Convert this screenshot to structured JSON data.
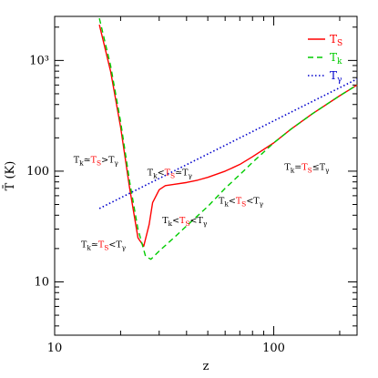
{
  "chart_data": {
    "type": "line",
    "xscale": "log",
    "yscale": "log",
    "xlim": [
      10,
      240
    ],
    "ylim": [
      3.3,
      2500
    ],
    "xlabel": "z",
    "ylabel": "T̄ (K)",
    "xticks": [
      {
        "value": 10,
        "label": "10"
      },
      {
        "value": 100,
        "label": "100"
      }
    ],
    "yticks": [
      {
        "value": 10,
        "label": "10"
      },
      {
        "value": 100,
        "label": "100"
      },
      {
        "value": 1000,
        "label": "10³"
      }
    ],
    "colors": {
      "T_S": "#ff0000",
      "T_k": "#00cc00",
      "T_gamma": "#0000cc"
    },
    "series": [
      {
        "name": "T_S",
        "legend_main": "T",
        "legend_sub": "S",
        "style": "solid",
        "x": [
          16,
          18,
          20,
          22,
          24,
          25.5,
          27,
          28,
          30,
          32,
          35,
          40,
          45,
          50,
          60,
          70,
          80,
          100,
          120,
          150,
          200,
          240
        ],
        "y": [
          2100,
          800,
          250,
          70,
          25,
          21,
          33,
          52,
          68,
          74,
          76,
          79,
          83,
          88,
          100,
          115,
          135,
          180,
          240,
          330,
          480,
          600
        ]
      },
      {
        "name": "T_k",
        "legend_main": "T",
        "legend_sub": "k",
        "style": "dashed",
        "x": [
          16,
          18,
          20,
          22,
          24,
          26,
          27.5,
          30,
          35,
          40,
          50,
          60,
          70,
          80,
          100,
          120,
          150,
          200,
          240
        ],
        "y": [
          2400,
          900,
          280,
          80,
          30,
          17,
          16,
          19,
          25,
          32,
          48,
          70,
          93,
          120,
          180,
          240,
          330,
          480,
          600
        ]
      },
      {
        "name": "T_gamma",
        "legend_main": "T",
        "legend_sub": "γ",
        "style": "dotted",
        "x": [
          16,
          240
        ],
        "y": [
          46,
          680
        ]
      }
    ],
    "annotations": [
      {
        "x": 12.2,
        "y": 120,
        "parts": [
          {
            "text": "T",
            "color": "black"
          },
          {
            "text": "k",
            "color": "black",
            "sub": true
          },
          {
            "text": "≃",
            "color": "black"
          },
          {
            "text": "T",
            "color": "red"
          },
          {
            "text": "S",
            "color": "red",
            "sub": true
          },
          {
            "text": ">",
            "color": "black"
          },
          {
            "text": "T",
            "color": "black"
          },
          {
            "text": "γ",
            "color": "black",
            "sub": true
          }
        ]
      },
      {
        "x": 26.5,
        "y": 92,
        "parts": [
          {
            "text": "T",
            "color": "black"
          },
          {
            "text": "k",
            "color": "black",
            "sub": true
          },
          {
            "text": "<",
            "color": "black"
          },
          {
            "text": "T",
            "color": "red"
          },
          {
            "text": "S",
            "color": "red",
            "sub": true
          },
          {
            "text": "≃",
            "color": "black"
          },
          {
            "text": "T",
            "color": "black"
          },
          {
            "text": "γ",
            "color": "black",
            "sub": true
          }
        ]
      },
      {
        "x": 112,
        "y": 103,
        "parts": [
          {
            "text": "T",
            "color": "black"
          },
          {
            "text": "k",
            "color": "black",
            "sub": true
          },
          {
            "text": "=",
            "color": "black"
          },
          {
            "text": "T",
            "color": "red"
          },
          {
            "text": "S",
            "color": "red",
            "sub": true
          },
          {
            "text": "≤",
            "color": "black"
          },
          {
            "text": "T",
            "color": "black"
          },
          {
            "text": "γ",
            "color": "black",
            "sub": true
          }
        ]
      },
      {
        "x": 56,
        "y": 51,
        "parts": [
          {
            "text": "T",
            "color": "black"
          },
          {
            "text": "k",
            "color": "black",
            "sub": true
          },
          {
            "text": "<",
            "color": "black"
          },
          {
            "text": "T",
            "color": "red"
          },
          {
            "text": "S",
            "color": "red",
            "sub": true
          },
          {
            "text": "<",
            "color": "black"
          },
          {
            "text": "T",
            "color": "black"
          },
          {
            "text": "γ",
            "color": "black",
            "sub": true
          }
        ]
      },
      {
        "x": 31,
        "y": 34,
        "parts": [
          {
            "text": "T",
            "color": "black"
          },
          {
            "text": "k",
            "color": "black",
            "sub": true
          },
          {
            "text": "<",
            "color": "black"
          },
          {
            "text": "T",
            "color": "red"
          },
          {
            "text": "S",
            "color": "red",
            "sub": true
          },
          {
            "text": "<",
            "color": "black"
          },
          {
            "text": "T",
            "color": "black"
          },
          {
            "text": "γ",
            "color": "black",
            "sub": true
          }
        ]
      },
      {
        "x": 13.2,
        "y": 20.5,
        "parts": [
          {
            "text": "T",
            "color": "black"
          },
          {
            "text": "k",
            "color": "black",
            "sub": true
          },
          {
            "text": "≃",
            "color": "black"
          },
          {
            "text": "T",
            "color": "red"
          },
          {
            "text": "S",
            "color": "red",
            "sub": true
          },
          {
            "text": "<",
            "color": "black"
          },
          {
            "text": "T",
            "color": "black"
          },
          {
            "text": "γ",
            "color": "black",
            "sub": true
          }
        ]
      }
    ],
    "legend": "top-right"
  }
}
